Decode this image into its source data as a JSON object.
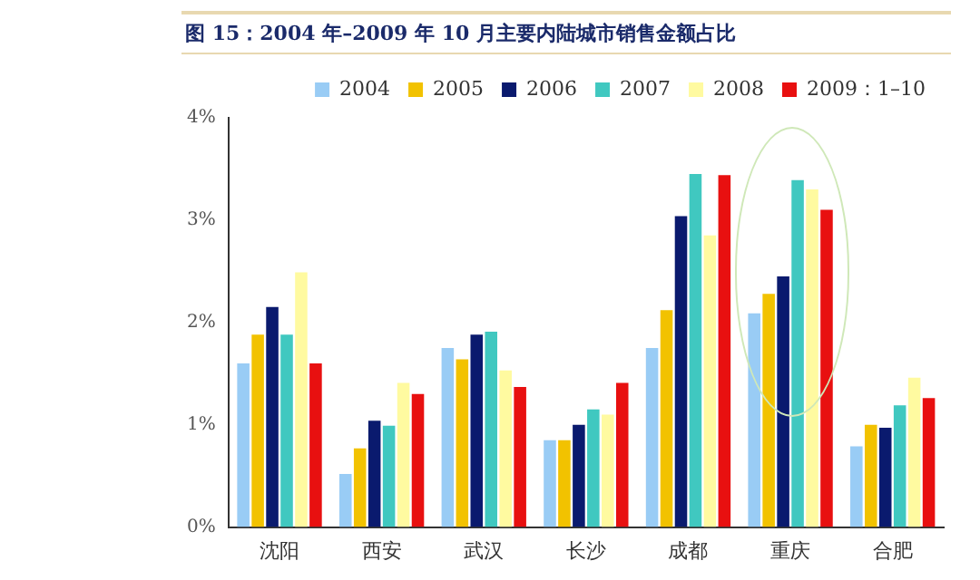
{
  "chart_data": {
    "type": "bar",
    "title": "图 15：2004 年–2009 年 10 月主要内陆城市销售金额占比",
    "categories": [
      "沈阳",
      "西安",
      "武汉",
      "长沙",
      "成都",
      "重庆",
      "合肥"
    ],
    "series": [
      {
        "name": "2004",
        "color": "#99ccf5",
        "values": [
          1.6,
          0.52,
          1.75,
          0.85,
          1.75,
          2.09,
          0.79
        ]
      },
      {
        "name": "2005",
        "color": "#f2c200",
        "values": [
          1.88,
          0.77,
          1.64,
          0.85,
          2.12,
          2.28,
          1.0
        ]
      },
      {
        "name": "2006",
        "color": "#0a1a6e",
        "values": [
          2.15,
          1.04,
          1.88,
          1.0,
          3.04,
          2.45,
          0.97
        ]
      },
      {
        "name": "2007",
        "color": "#40c8c0",
        "values": [
          1.88,
          0.99,
          1.91,
          1.15,
          3.45,
          3.39,
          1.19
        ]
      },
      {
        "name": "2008",
        "color": "#fffaa0",
        "values": [
          2.49,
          1.41,
          1.53,
          1.1,
          2.85,
          3.3,
          1.46
        ]
      },
      {
        "name": "2009：1–10",
        "color": "#e81010",
        "values": [
          1.6,
          1.3,
          1.37,
          1.41,
          3.44,
          3.1,
          1.26
        ]
      }
    ],
    "ylim": [
      0,
      4
    ],
    "yticks": [
      {
        "value": 0,
        "label": "0%"
      },
      {
        "value": 1,
        "label": "1%"
      },
      {
        "value": 2,
        "label": "2%"
      },
      {
        "value": 3,
        "label": "3%"
      },
      {
        "value": 4,
        "label": "4%"
      }
    ],
    "grid": false,
    "legend": "top right"
  }
}
